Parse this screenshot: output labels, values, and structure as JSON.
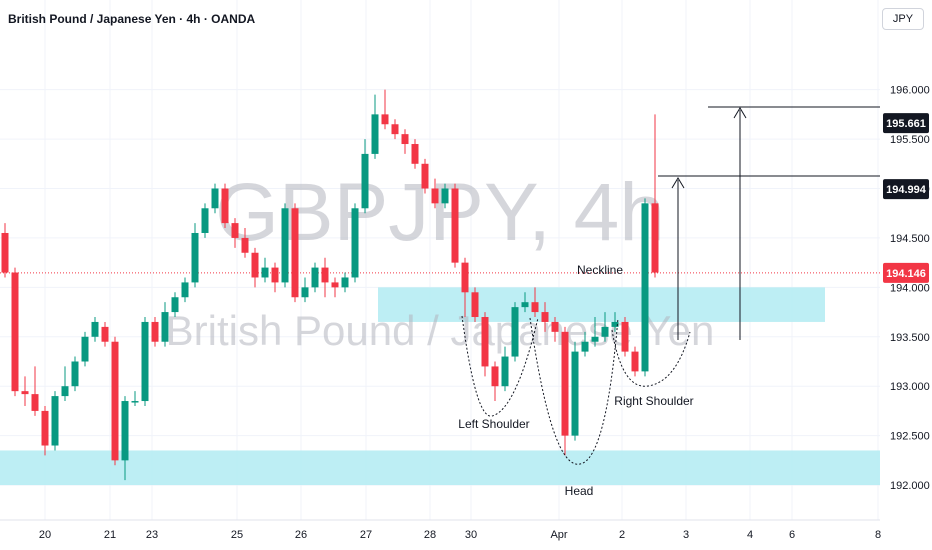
{
  "header": {
    "title": "British Pound / Japanese Yen · 4h · OANDA",
    "currency": "JPY"
  },
  "watermark": {
    "symbol": "GBPJPY, 4h",
    "name": "British Pound / Japanese Yen"
  },
  "colors": {
    "up": "#089981",
    "down": "#f23645",
    "zone": "#b2ebf2",
    "grid": "#f0f3fa",
    "axis_text": "#131722"
  },
  "chart_data": {
    "type": "candlestick",
    "ylim": [
      191.95,
      196.3
    ],
    "y_ticks": [
      "196.000",
      "195.500",
      "195.000",
      "194.500",
      "194.000",
      "193.500",
      "193.000",
      "192.500",
      "192.000"
    ],
    "x_ticks": [
      "20",
      "21",
      "23",
      "25",
      "26",
      "27",
      "28",
      "30",
      "Apr",
      "2",
      "3",
      "4",
      "6",
      "8"
    ],
    "price_labels": [
      {
        "text": "195.661",
        "value": 195.661,
        "style": "dark"
      },
      {
        "text": "194.994",
        "value": 194.994,
        "style": "dark"
      },
      {
        "text": "194.146",
        "value": 194.146,
        "style": "red"
      }
    ],
    "current_price": 194.146,
    "zones": [
      {
        "name": "resistance",
        "from": 193.65,
        "to": 194.0
      },
      {
        "name": "support",
        "from": 192.0,
        "to": 192.35
      }
    ],
    "annotations": [
      "Neckline",
      "Left Shoulder",
      "Head",
      "Right Shoulder"
    ],
    "candles": [
      [
        194.55,
        194.15,
        194.65,
        194.1
      ],
      [
        194.15,
        192.95,
        194.2,
        192.9
      ],
      [
        192.95,
        192.92,
        193.1,
        192.8
      ],
      [
        192.92,
        192.75,
        193.2,
        192.7
      ],
      [
        192.75,
        192.4,
        192.8,
        192.3
      ],
      [
        192.4,
        192.9,
        192.95,
        192.35
      ],
      [
        192.9,
        193.0,
        193.2,
        192.85
      ],
      [
        193.0,
        193.25,
        193.3,
        192.95
      ],
      [
        193.25,
        193.5,
        193.55,
        193.2
      ],
      [
        193.5,
        193.65,
        193.7,
        193.45
      ],
      [
        193.6,
        193.45,
        193.65,
        193.4
      ],
      [
        193.45,
        192.25,
        193.5,
        192.2
      ],
      [
        192.25,
        192.85,
        192.9,
        192.05
      ],
      [
        192.85,
        192.85,
        192.95,
        192.8
      ],
      [
        192.85,
        193.65,
        193.7,
        192.8
      ],
      [
        193.65,
        193.45,
        193.7,
        193.4
      ],
      [
        193.45,
        193.75,
        193.85,
        193.4
      ],
      [
        193.75,
        193.9,
        193.95,
        193.7
      ],
      [
        193.9,
        194.05,
        194.1,
        193.85
      ],
      [
        194.05,
        194.55,
        194.65,
        194.0
      ],
      [
        194.55,
        194.8,
        194.85,
        194.5
      ],
      [
        194.8,
        195.0,
        195.05,
        194.75
      ],
      [
        195.0,
        194.65,
        195.05,
        194.6
      ],
      [
        194.65,
        194.5,
        194.7,
        194.4
      ],
      [
        194.5,
        194.35,
        194.6,
        194.3
      ],
      [
        194.35,
        194.1,
        194.4,
        194.0
      ],
      [
        194.1,
        194.2,
        194.3,
        194.05
      ],
      [
        194.2,
        194.05,
        194.25,
        193.95
      ],
      [
        194.05,
        194.8,
        194.85,
        194.0
      ],
      [
        194.8,
        193.9,
        194.85,
        193.85
      ],
      [
        193.9,
        194.0,
        194.1,
        193.85
      ],
      [
        194.0,
        194.2,
        194.25,
        193.95
      ],
      [
        194.2,
        194.05,
        194.3,
        193.9
      ],
      [
        194.05,
        194.0,
        194.1,
        193.9
      ],
      [
        194.0,
        194.1,
        194.15,
        193.95
      ],
      [
        194.1,
        194.8,
        194.85,
        194.05
      ],
      [
        194.8,
        195.35,
        195.5,
        194.75
      ],
      [
        195.35,
        195.75,
        195.95,
        195.3
      ],
      [
        195.75,
        195.65,
        196.0,
        195.6
      ],
      [
        195.65,
        195.55,
        195.7,
        195.5
      ],
      [
        195.55,
        195.45,
        195.6,
        195.35
      ],
      [
        195.45,
        195.25,
        195.5,
        195.2
      ],
      [
        195.25,
        195.0,
        195.3,
        194.95
      ],
      [
        195.0,
        194.85,
        195.1,
        194.8
      ],
      [
        194.85,
        195.0,
        195.05,
        194.8
      ],
      [
        195.0,
        194.25,
        195.05,
        194.2
      ],
      [
        194.25,
        193.95,
        194.3,
        193.7
      ],
      [
        193.95,
        193.7,
        194.0,
        193.65
      ],
      [
        193.7,
        193.2,
        193.75,
        193.1
      ],
      [
        193.2,
        193.0,
        193.25,
        192.85
      ],
      [
        193.0,
        193.3,
        193.4,
        192.95
      ],
      [
        193.3,
        193.8,
        193.85,
        193.25
      ],
      [
        193.8,
        193.85,
        193.95,
        193.75
      ],
      [
        193.85,
        193.75,
        194.0,
        193.7
      ],
      [
        193.75,
        193.65,
        193.85,
        193.55
      ],
      [
        193.65,
        193.55,
        193.7,
        193.45
      ],
      [
        193.55,
        192.5,
        193.6,
        192.3
      ],
      [
        192.5,
        193.35,
        193.45,
        192.45
      ],
      [
        193.35,
        193.45,
        193.55,
        193.3
      ],
      [
        193.45,
        193.5,
        193.7,
        193.4
      ],
      [
        193.5,
        193.6,
        193.75,
        193.45
      ],
      [
        193.6,
        193.65,
        193.75,
        193.55
      ],
      [
        193.65,
        193.35,
        193.7,
        193.3
      ],
      [
        193.35,
        193.15,
        193.4,
        193.1
      ],
      [
        193.15,
        194.85,
        194.9,
        193.1
      ],
      [
        194.85,
        194.15,
        195.75,
        194.1
      ]
    ]
  }
}
